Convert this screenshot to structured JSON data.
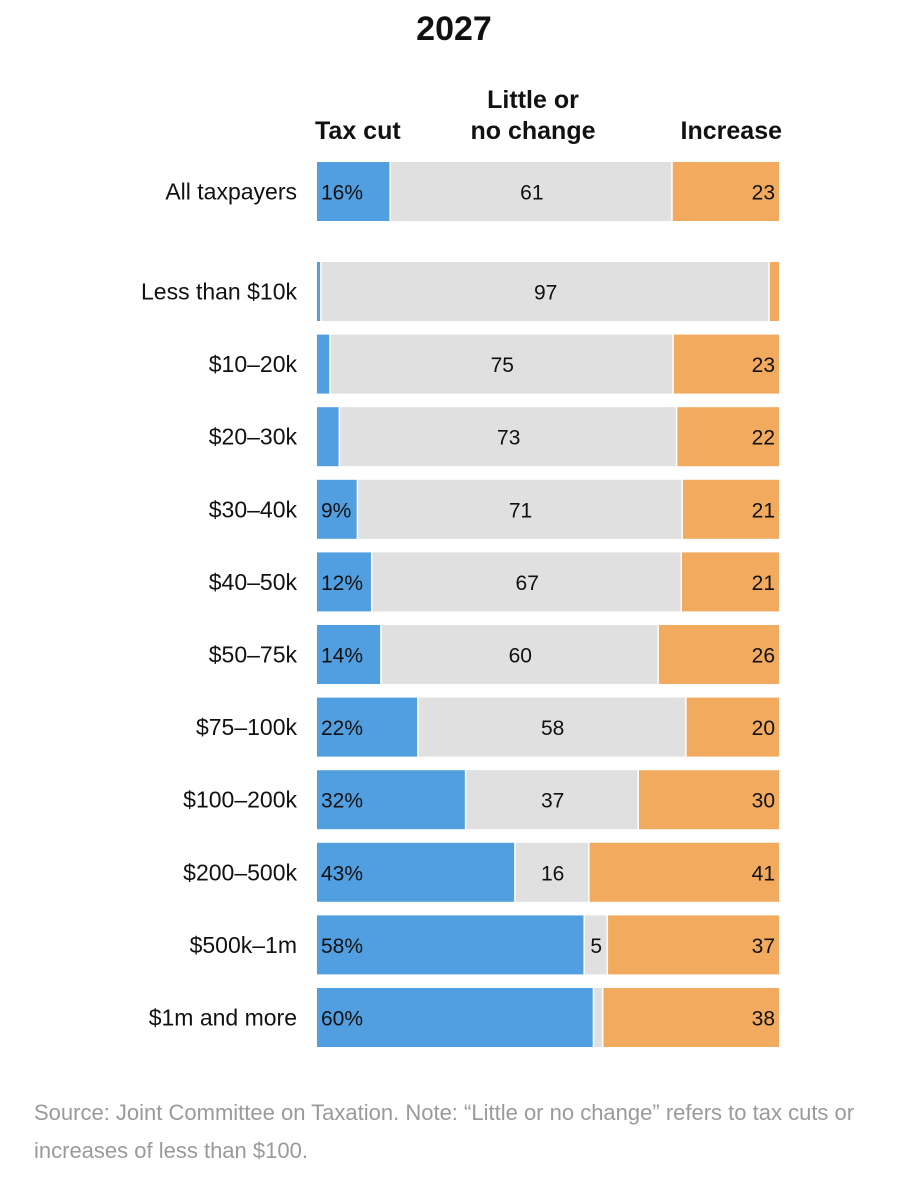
{
  "chart_data": {
    "type": "bar",
    "orientation": "horizontal-stacked-100",
    "title": "2027",
    "column_headers": {
      "tax_cut": "Tax cut",
      "little_change_line1": "Little or",
      "little_change_line2": "no change",
      "increase": "Increase"
    },
    "categories": [
      "All taxpayers",
      "Less than $10k",
      "$10–20k",
      "$20–30k",
      "$30–40k",
      "$40–50k",
      "$50–75k",
      "$75–100k",
      "$100–200k",
      "$200–500k",
      "$500k–1m",
      "$1m and more"
    ],
    "series": [
      {
        "name": "Tax cut",
        "color": "#519fe0",
        "values": [
          16,
          1,
          3,
          5,
          9,
          12,
          14,
          22,
          32,
          43,
          58,
          60
        ]
      },
      {
        "name": "Little or no change",
        "color": "#e0e0e0",
        "values": [
          61,
          97,
          75,
          73,
          71,
          67,
          60,
          58,
          37,
          16,
          5,
          2
        ]
      },
      {
        "name": "Increase",
        "color": "#f2aa5e",
        "values": [
          23,
          2,
          23,
          22,
          21,
          21,
          26,
          20,
          30,
          41,
          37,
          38
        ]
      }
    ],
    "data_labels": [
      [
        "16%",
        "61",
        "23"
      ],
      [
        "",
        "97",
        ""
      ],
      [
        "",
        "75",
        "23"
      ],
      [
        "",
        "73",
        "22"
      ],
      [
        "9%",
        "71",
        "21"
      ],
      [
        "12%",
        "67",
        "21"
      ],
      [
        "14%",
        "60",
        "26"
      ],
      [
        "22%",
        "58",
        "20"
      ],
      [
        "32%",
        "37",
        "30"
      ],
      [
        "43%",
        "16",
        "41"
      ],
      [
        "58%",
        "5",
        "37"
      ],
      [
        "60%",
        "",
        "38"
      ]
    ],
    "xlim": [
      0,
      100
    ]
  },
  "source_note": "Source: Joint Committee on Taxation. Note: “Little or no change” refers to tax cuts or increases of less than $100."
}
